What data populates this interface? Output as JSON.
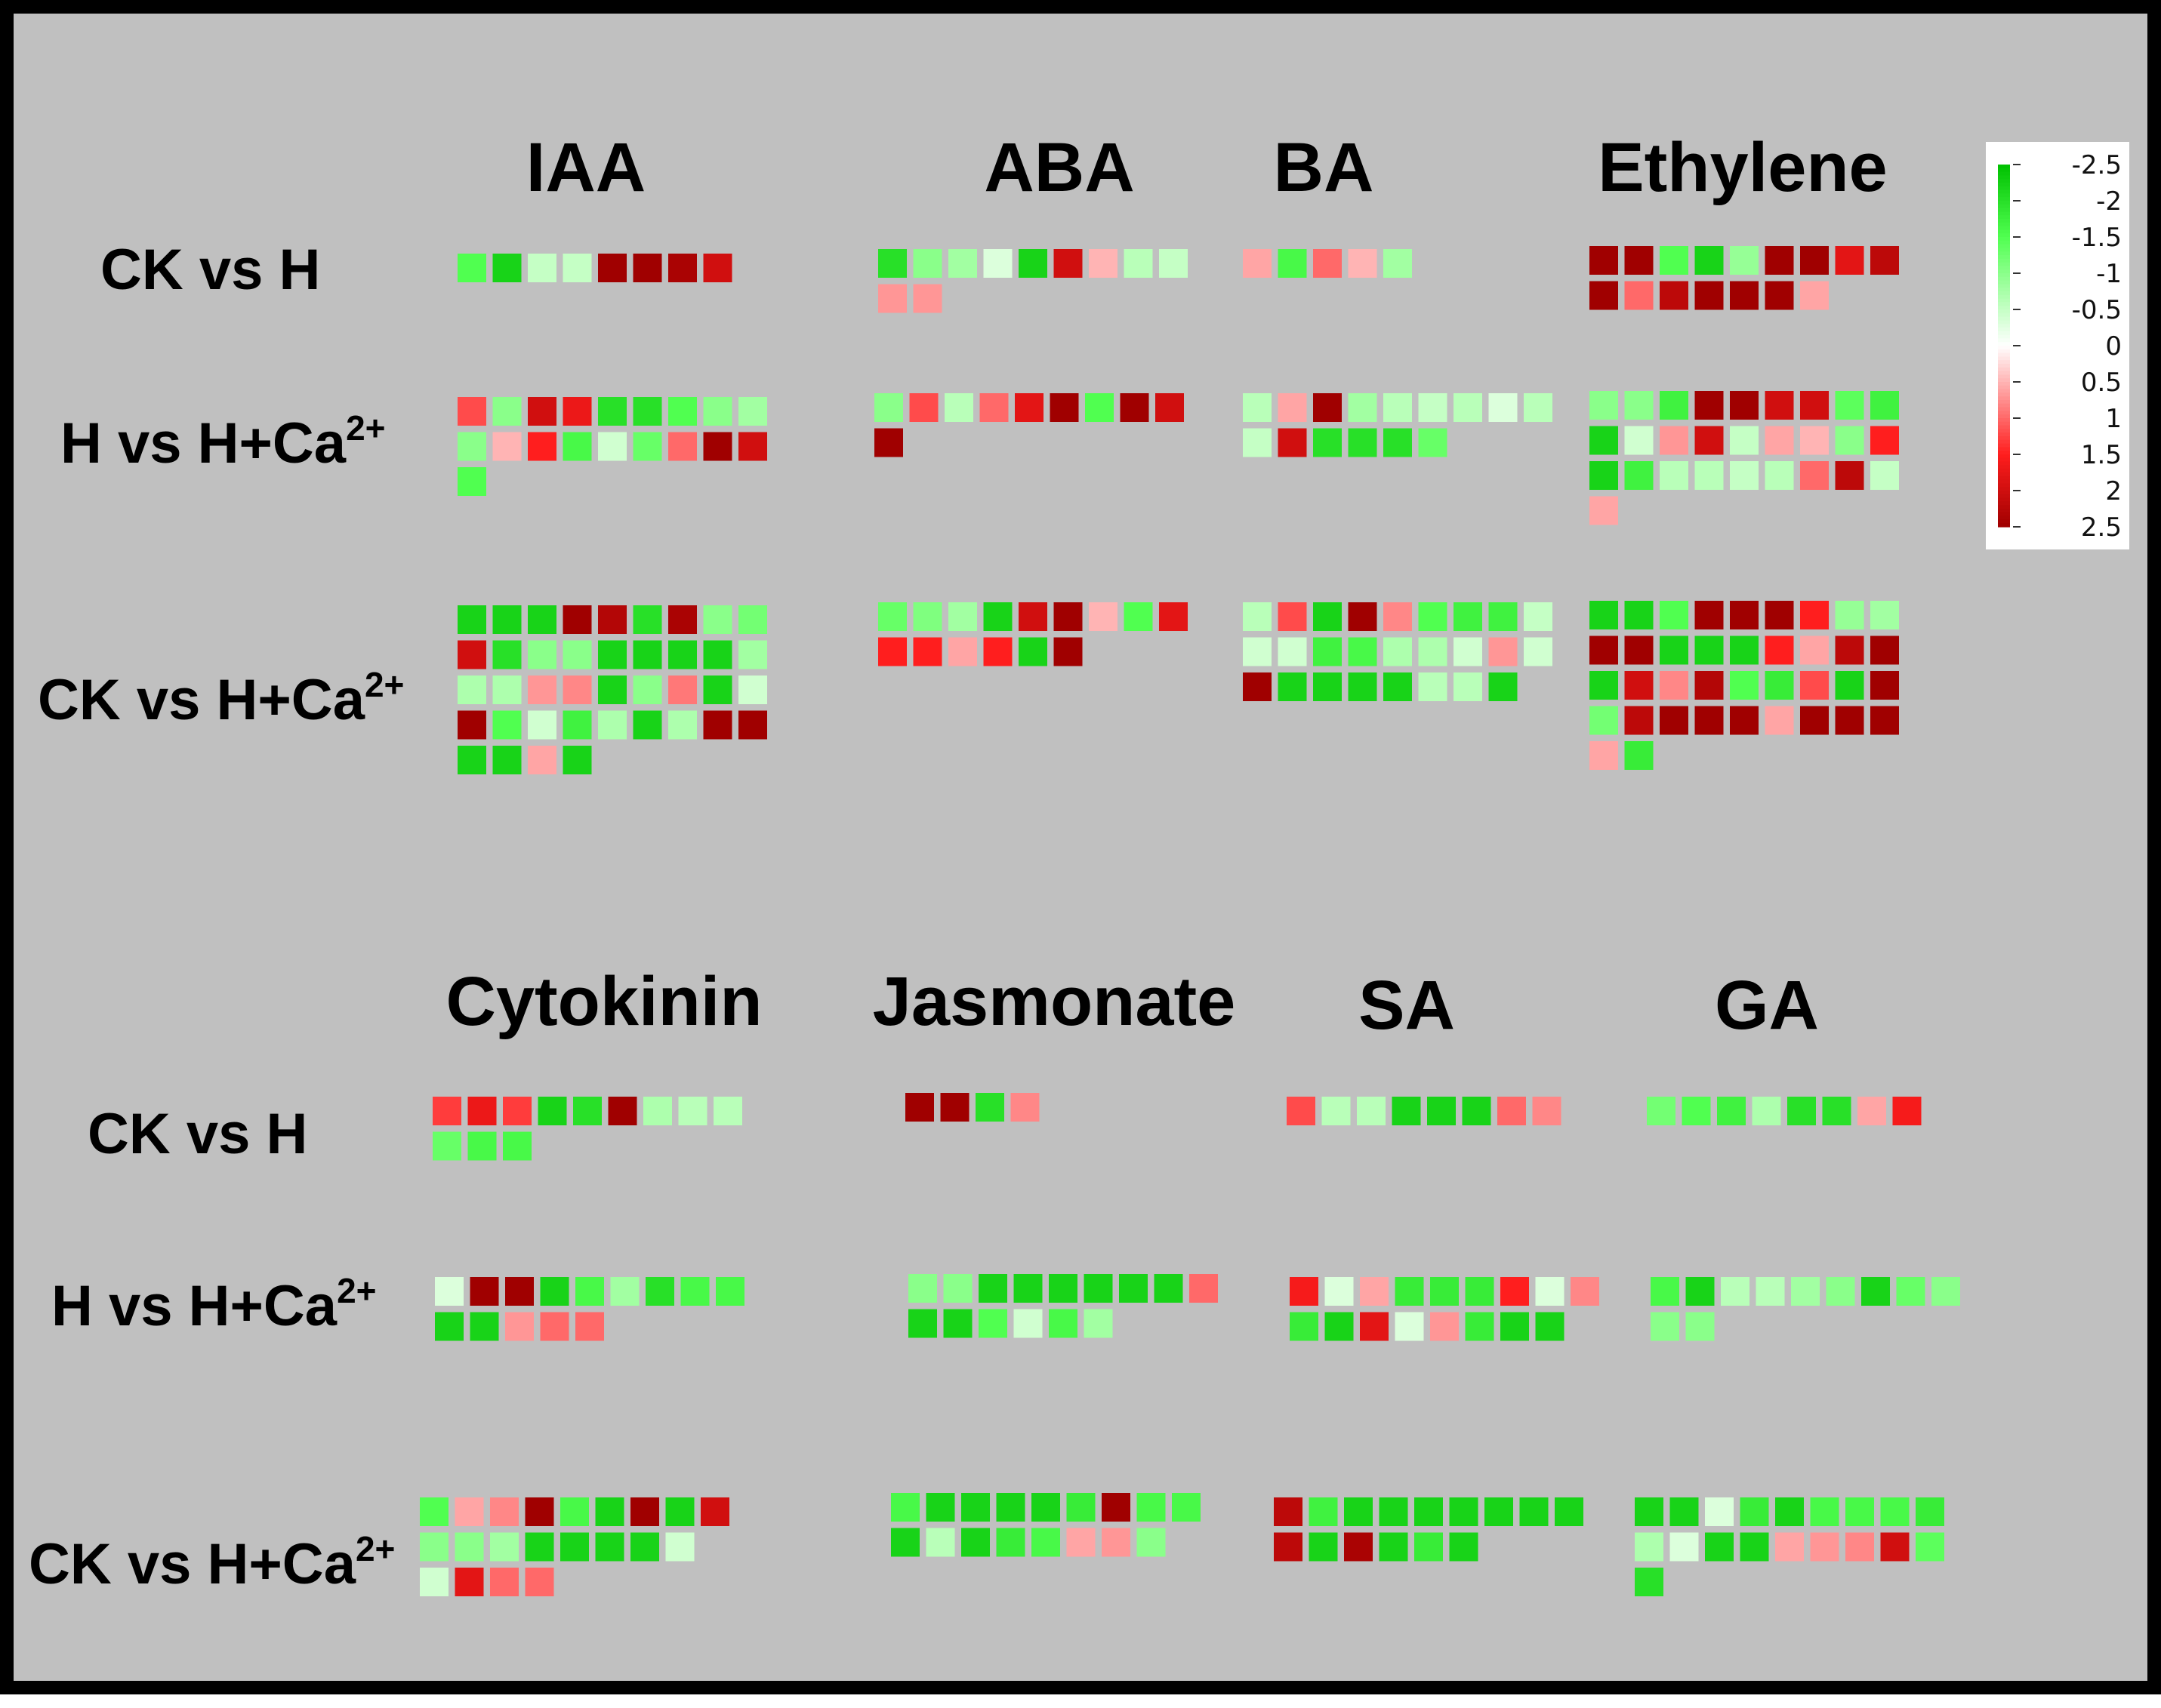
{
  "chart_data": {
    "type": "heatmap",
    "color_scale": {
      "min": -2.5,
      "max": 2.5,
      "negative_color": "#00c000",
      "positive_color": "#a00000",
      "neutral_color": "#ffffff",
      "ticks": [
        "-2.5",
        "-2",
        "-1.5",
        "-1",
        "-0.5",
        "0",
        "0.5",
        "1",
        "1.5",
        "2",
        "2.5"
      ]
    },
    "panels": [
      {
        "row_labels": [
          "CK vs H",
          "H vs H+Ca",
          "CK vs H+Ca"
        ],
        "row_label_superscripts": [
          "",
          "2+",
          "2+"
        ],
        "hormones": [
          {
            "name": "IAA",
            "groups": [
              [
                [
                  -1.5,
                  -2.2,
                  -0.5,
                  -0.5,
                  2.5,
                  2.5,
                  2.4,
                  2.0
                ]
              ],
              [
                [
                  1.2,
                  -1.0,
                  2.0,
                  1.7,
                  -2.0,
                  -2.0,
                  -1.5,
                  -1.0,
                  -0.8
                ],
                [
                  -1.0,
                  0.5,
                  1.5,
                  -1.6,
                  -0.4,
                  -1.3,
                  1.0,
                  2.5,
                  2.0
                ],
                [
                  -1.5
                ]
              ],
              [
                [
                  -2.2,
                  -2.2,
                  -2.2,
                  2.5,
                  2.3,
                  -2.0,
                  2.4,
                  -1.0,
                  -1.2
                ],
                [
                  2.0,
                  -2.0,
                  -1.0,
                  -1.0,
                  -2.2,
                  -2.2,
                  -2.2,
                  -2.2,
                  -0.8
                ],
                [
                  -0.7,
                  -0.7,
                  0.7,
                  0.8,
                  -2.2,
                  -1.0,
                  0.9,
                  -2.2,
                  -0.4
                ],
                [
                  2.5,
                  -1.5,
                  -0.4,
                  -1.7,
                  -0.7,
                  -2.2,
                  -0.7,
                  2.5,
                  2.5
                ],
                [
                  -2.2,
                  -2.2,
                  0.6,
                  -2.2
                ]
              ]
            ]
          },
          {
            "name": "ABA",
            "groups": [
              [
                [
                  -2.0,
                  -1.0,
                  -0.8,
                  -0.3,
                  -2.2,
                  2.0,
                  0.5,
                  -0.6,
                  -0.5
                ],
                [
                  0.7,
                  0.7
                ]
              ],
              [
                [
                  -1.0,
                  1.2,
                  -0.6,
                  1.0,
                  1.8,
                  2.5,
                  -1.5,
                  2.5,
                  2.0
                ],
                [
                  2.5
                ]
              ],
              [
                [
                  -1.3,
                  -1.1,
                  -0.8,
                  -2.2,
                  2.0,
                  2.5,
                  0.5,
                  -1.5,
                  1.8
                ],
                [
                  1.5,
                  1.5,
                  0.6,
                  1.5,
                  -2.2,
                  2.5
                ]
              ]
            ]
          },
          {
            "name": "BA",
            "groups": [
              [
                [
                  0.6,
                  -1.6,
                  1.0,
                  0.5,
                  -0.8
                ]
              ],
              [
                [
                  -0.6,
                  0.6,
                  2.5,
                  -0.8,
                  -0.6,
                  -0.5,
                  -0.6,
                  -0.3,
                  -0.6
                ],
                [
                  -0.5,
                  2.0,
                  -2.0,
                  -2.0,
                  -2.0,
                  -1.3
                ]
              ],
              [
                [
                  -0.6,
                  1.2,
                  -2.2,
                  2.5,
                  0.8,
                  -1.5,
                  -1.7,
                  -1.7,
                  -0.5
                ],
                [
                  -0.4,
                  -0.4,
                  -1.7,
                  -1.6,
                  -0.7,
                  -0.7,
                  -0.4,
                  0.7,
                  -0.4
                ],
                [
                  2.5,
                  -2.2,
                  -2.2,
                  -2.2,
                  -2.2,
                  -0.6,
                  -0.6,
                  -2.2
                ]
              ]
            ]
          },
          {
            "name": "Ethylene",
            "groups": [
              [
                [
                  2.5,
                  2.5,
                  -1.5,
                  -2.2,
                  -0.9,
                  2.5,
                  2.5,
                  1.8,
                  2.2
                ],
                [
                  2.5,
                  1.0,
                  2.2,
                  2.5,
                  2.5,
                  2.5,
                  0.6
                ]
              ],
              [
                [
                  -1.0,
                  -1.0,
                  -1.7,
                  2.5,
                  2.5,
                  2.0,
                  2.0,
                  -1.4,
                  -1.7
                ],
                [
                  -2.2,
                  -0.4,
                  0.7,
                  2.0,
                  -0.5,
                  0.6,
                  0.5,
                  -1.0,
                  1.5
                ],
                [
                  -2.2,
                  -1.7,
                  -0.6,
                  -0.6,
                  -0.5,
                  -0.6,
                  1.0,
                  2.2,
                  -0.5
                ],
                [
                  0.6
                ]
              ],
              [
                [
                  -2.2,
                  -2.2,
                  -1.5,
                  2.5,
                  2.5,
                  2.5,
                  1.5,
                  -0.9,
                  -0.8
                ],
                [
                  2.5,
                  2.5,
                  -2.2,
                  -2.2,
                  -2.2,
                  1.5,
                  0.6,
                  2.2,
                  2.5
                ],
                [
                  -2.2,
                  2.0,
                  0.8,
                  2.3,
                  -1.5,
                  -1.8,
                  1.2,
                  -2.2,
                  2.5
                ],
                [
                  -1.2,
                  2.2,
                  2.5,
                  2.5,
                  2.5,
                  0.6,
                  2.5,
                  2.5,
                  2.5
                ],
                [
                  0.6,
                  -1.8
                ]
              ]
            ]
          }
        ]
      },
      {
        "row_labels": [
          "CK vs H",
          "H vs H+Ca",
          "CK vs H+Ca"
        ],
        "row_label_superscripts": [
          "",
          "2+",
          "2+"
        ],
        "hormones": [
          {
            "name": "Cytokinin",
            "groups": [
              [
                [
                  1.3,
                  1.7,
                  1.3,
                  -2.2,
                  -2.0,
                  2.5,
                  -0.7,
                  -0.6,
                  -0.6
                ],
                [
                  -1.3,
                  -1.6,
                  -1.6
                ]
              ],
              [
                [
                  -0.3,
                  2.5,
                  2.5,
                  -2.2,
                  -1.6,
                  -0.8,
                  -2.0,
                  -1.6,
                  -1.6
                ],
                [
                  -2.2,
                  -2.2,
                  0.7,
                  1.0,
                  1.0
                ]
              ],
              [
                [
                  -1.5,
                  0.6,
                  0.8,
                  2.5,
                  -1.6,
                  -2.2,
                  2.5,
                  -2.2,
                  2.0
                ],
                [
                  -1.0,
                  -1.0,
                  -0.8,
                  -2.2,
                  -2.2,
                  -2.2,
                  -2.2,
                  -0.4
                ],
                [
                  -0.4,
                  1.8,
                  1.0,
                  1.0
                ]
              ]
            ]
          },
          {
            "name": "Jasmonate",
            "groups": [
              [
                [
                  2.5,
                  2.5,
                  -2.0,
                  0.8
                ]
              ],
              [
                [
                  -1.0,
                  -1.0,
                  -2.2,
                  -2.2,
                  -2.2,
                  -2.2,
                  -2.2,
                  -2.2,
                  1.0
                ],
                [
                  -2.2,
                  -2.2,
                  -1.5,
                  -0.4,
                  -1.6,
                  -0.8
                ]
              ],
              [
                [
                  -1.6,
                  -2.2,
                  -2.2,
                  -2.2,
                  -2.2,
                  -1.8,
                  2.5,
                  -1.6,
                  -1.6
                ],
                [
                  -2.2,
                  -0.6,
                  -2.2,
                  -1.8,
                  -1.6,
                  0.6,
                  0.7,
                  -1.0
                ]
              ]
            ]
          },
          {
            "name": "SA",
            "groups": [
              [
                [
                  1.2,
                  -0.6,
                  -0.6,
                  -2.2,
                  -2.2,
                  -2.2,
                  1.0,
                  0.8
                ]
              ],
              [
                [
                  1.6,
                  -0.3,
                  0.6,
                  -1.8,
                  -1.8,
                  -1.8,
                  1.5,
                  -0.3,
                  0.8
                ],
                [
                  -1.8,
                  -2.2,
                  1.8,
                  -0.3,
                  0.7,
                  -1.8,
                  -2.2,
                  -2.2
                ]
              ],
              [
                [
                  2.2,
                  -1.7,
                  -2.2,
                  -2.2,
                  -2.2,
                  -2.2,
                  -2.2,
                  -2.2,
                  -2.2
                ],
                [
                  2.2,
                  -2.2,
                  2.4,
                  -2.2,
                  -1.8,
                  -2.2
                ]
              ]
            ]
          },
          {
            "name": "GA",
            "groups": [
              [
                [
                  -1.2,
                  -1.5,
                  -1.7,
                  -0.7,
                  -2.0,
                  -2.0,
                  0.6,
                  1.6
                ]
              ],
              [
                [
                  -1.6,
                  -2.2,
                  -0.6,
                  -0.6,
                  -0.8,
                  -1.0,
                  -2.2,
                  -1.3,
                  -1.0
                ],
                [
                  -1.0,
                  -1.0
                ]
              ],
              [
                [
                  -2.2,
                  -2.2,
                  -0.3,
                  -1.8,
                  -2.2,
                  -1.6,
                  -1.6,
                  -1.6,
                  -1.8
                ],
                [
                  -0.7,
                  -0.3,
                  -2.2,
                  -2.2,
                  0.6,
                  0.7,
                  0.8,
                  2.0,
                  -1.4
                ],
                [
                  -2.0
                ]
              ]
            ]
          }
        ]
      }
    ]
  }
}
